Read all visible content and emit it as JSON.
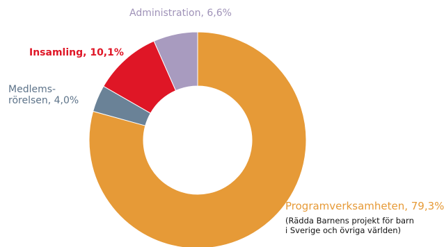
{
  "chart_data": {
    "type": "pie",
    "style": "donut",
    "slices": [
      {
        "label": "Programverksamheten, 79,3%",
        "value": 79.3,
        "color": "#e69a37",
        "label_color": "#e69a37"
      },
      {
        "label": "Medlems-\nrörelsen, 4,0%",
        "value": 4.0,
        "color": "#6a8297",
        "label_color": "#5d7389"
      },
      {
        "label": "Insamling, 10,1%",
        "value": 10.1,
        "color": "#df1626",
        "label_color": "#df1626"
      },
      {
        "label": "Administration, 6,6%",
        "value": 6.6,
        "color": "#a89bbf",
        "label_color": "#9f92b8"
      }
    ],
    "annotation": [
      "(Rädda Barnens projekt för barn",
      "i Sverige och övriga världen)"
    ]
  }
}
